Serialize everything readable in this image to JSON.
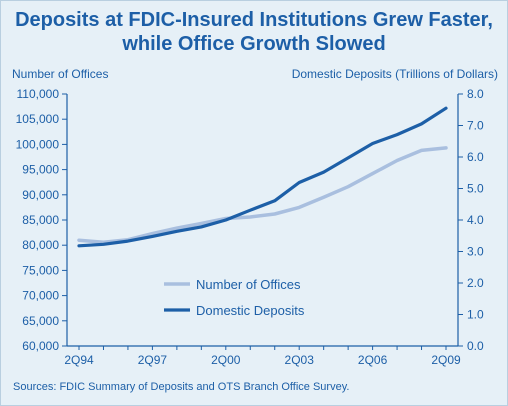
{
  "chart_data": {
    "type": "line",
    "title_line1": "Deposits at FDIC-Insured Institutions Grew Faster,",
    "title_line2": "while Office Growth Slowed",
    "ylabel_left": "Number of Offices",
    "ylabel_right": "Domestic Deposits (Trillions of Dollars)",
    "x": [
      "1994",
      "1995",
      "1996",
      "1997",
      "1998",
      "1999",
      "2000",
      "2001",
      "2002",
      "2003",
      "2004",
      "2005",
      "2006",
      "2007",
      "2008",
      "2009"
    ],
    "x_tick_labels": [
      "2Q94",
      "2Q97",
      "2Q00",
      "2Q03",
      "2Q06",
      "2Q09"
    ],
    "x_tick_years": [
      "1994",
      "1997",
      "2000",
      "2003",
      "2006",
      "2009"
    ],
    "ylim_left": [
      60000,
      110000
    ],
    "ylim_right": [
      0.0,
      8.0
    ],
    "left_ticks": [
      60000,
      65000,
      70000,
      75000,
      80000,
      85000,
      90000,
      95000,
      100000,
      105000,
      110000
    ],
    "left_tick_labels": [
      "60,000",
      "65,000",
      "70,000",
      "75,000",
      "80,000",
      "85,000",
      "90,000",
      "95,000",
      "100,000",
      "105,000",
      "110,000"
    ],
    "right_ticks": [
      0,
      1,
      2,
      3,
      4,
      5,
      6,
      7,
      8
    ],
    "right_tick_labels": [
      "0.0",
      "1.0",
      "2.0",
      "3.0",
      "4.0",
      "5.0",
      "6.0",
      "7.0",
      "8.0"
    ],
    "series": [
      {
        "name": "Number of Offices",
        "axis": "left",
        "color": "#a9bfdf",
        "values": [
          81000,
          80600,
          81100,
          82300,
          83400,
          84300,
          85300,
          85600,
          86200,
          87500,
          89500,
          91600,
          94200,
          96800,
          98800,
          99300
        ]
      },
      {
        "name": "Domestic Deposits",
        "axis": "right",
        "color": "#1d5fa7",
        "values": [
          3.18,
          3.23,
          3.33,
          3.48,
          3.64,
          3.78,
          4.0,
          4.31,
          4.61,
          5.19,
          5.52,
          5.97,
          6.43,
          6.71,
          7.05,
          7.55
        ]
      }
    ],
    "legend_position": "lower-center"
  },
  "sources": "Sources: FDIC Summary of Deposits and OTS Branch Office Survey."
}
